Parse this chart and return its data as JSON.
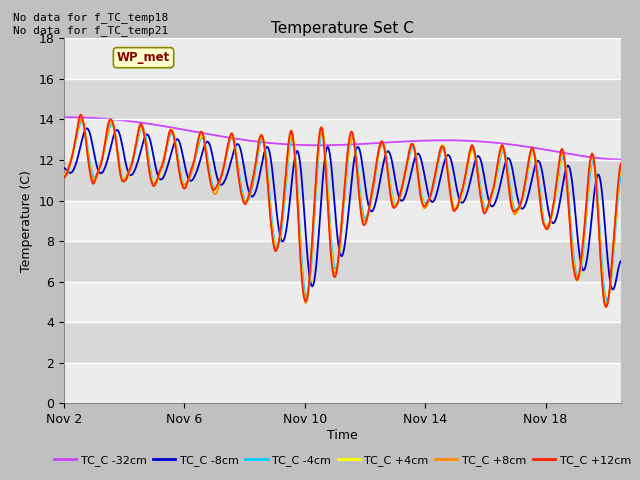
{
  "title": "Temperature Set C",
  "ylabel": "Temperature (C)",
  "xlabel": "Time",
  "annotations": [
    "No data for f_TC_temp18",
    "No data for f_TC_temp21"
  ],
  "wp_met_label": "WP_met",
  "ylim": [
    0,
    18
  ],
  "yticks": [
    0,
    2,
    4,
    6,
    8,
    10,
    12,
    14,
    16,
    18
  ],
  "x_tick_labels": [
    "Nov 2",
    "Nov 6",
    "Nov 10",
    "Nov 14",
    "Nov 18"
  ],
  "x_tick_positions": [
    1,
    5,
    9,
    13,
    17
  ],
  "legend_entries": [
    "TC_C -32cm",
    "TC_C -8cm",
    "TC_C -4cm",
    "TC_C +4cm",
    "TC_C +8cm",
    "TC_C +12cm"
  ],
  "line_colors": [
    "#cc44ff",
    "#0000cc",
    "#00ccff",
    "#ffff00",
    "#ff8800",
    "#ff2200"
  ],
  "bg_color": "#e8e8e8",
  "fig_bg_color": "#c8c8c8",
  "stripe_color": "#d0d0d0",
  "white_stripe": "#f0f0f0"
}
